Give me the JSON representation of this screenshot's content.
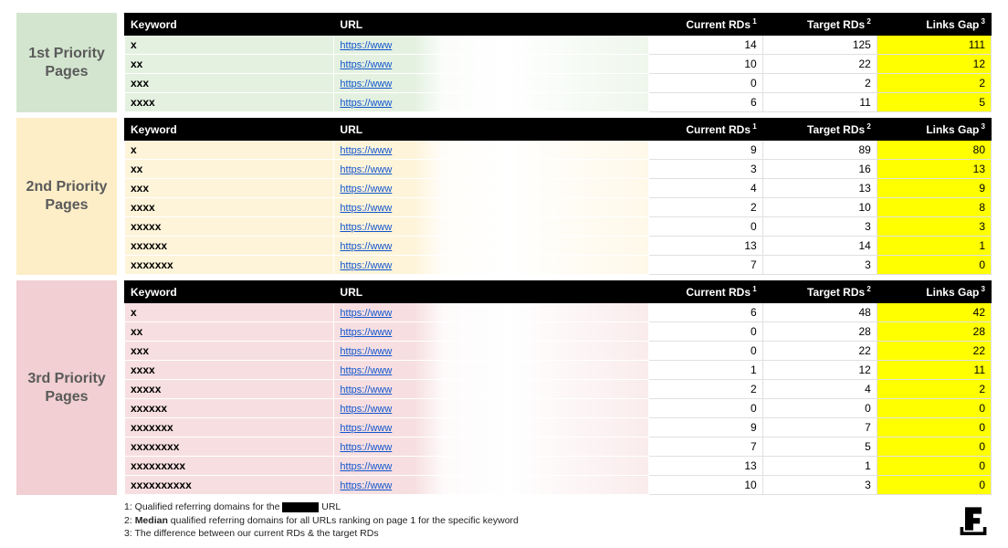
{
  "columns": {
    "keyword": "Keyword",
    "url": "URL",
    "current": "Current RDs",
    "current_sup": "1",
    "target": "Target RDs",
    "target_sup": "2",
    "gap": "Links Gap",
    "gap_sup": "3"
  },
  "sections": [
    {
      "label": "1st Priority Pages",
      "label_bg": "#d3e5cf",
      "row_bg": "#e4f1e0",
      "rows": [
        {
          "kw": "x",
          "url": "https://www",
          "current": 14,
          "target": 125,
          "gap": 111
        },
        {
          "kw": "xx",
          "url": "https://www",
          "current": 10,
          "target": 22,
          "gap": 12
        },
        {
          "kw": "xxx",
          "url": "https://www",
          "current": 0,
          "target": 2,
          "gap": 2
        },
        {
          "kw": "xxxx",
          "url": "https://www",
          "current": 6,
          "target": 11,
          "gap": 5
        }
      ]
    },
    {
      "label": "2nd Priority Pages",
      "label_bg": "#fdeec7",
      "row_bg": "#fef4da",
      "rows": [
        {
          "kw": "x",
          "url": "https://www",
          "current": 9,
          "target": 89,
          "gap": 80
        },
        {
          "kw": "xx",
          "url": "https://www",
          "current": 3,
          "target": 16,
          "gap": 13
        },
        {
          "kw": "xxx",
          "url": "https://www",
          "current": 4,
          "target": 13,
          "gap": 9
        },
        {
          "kw": "xxxx",
          "url": "https://www",
          "current": 2,
          "target": 10,
          "gap": 8
        },
        {
          "kw": "xxxxx",
          "url": "https://www",
          "current": 0,
          "target": 3,
          "gap": 3
        },
        {
          "kw": "xxxxxx",
          "url": "https://www",
          "current": 13,
          "target": 14,
          "gap": 1
        },
        {
          "kw": "xxxxxxx",
          "url": "https://www",
          "current": 7,
          "target": 3,
          "gap": 0
        }
      ]
    },
    {
      "label": "3rd Priority Pages",
      "label_bg": "#f1cfd2",
      "row_bg": "#f7dfe1",
      "rows": [
        {
          "kw": "x",
          "url": "https://www",
          "current": 6,
          "target": 48,
          "gap": 42
        },
        {
          "kw": "xx",
          "url": "https://www",
          "current": 0,
          "target": 28,
          "gap": 28
        },
        {
          "kw": "xxx",
          "url": "https://www",
          "current": 0,
          "target": 22,
          "gap": 22
        },
        {
          "kw": "xxxx",
          "url": "https://www",
          "current": 1,
          "target": 12,
          "gap": 11
        },
        {
          "kw": "xxxxx",
          "url": "https://www",
          "current": 2,
          "target": 4,
          "gap": 2
        },
        {
          "kw": "xxxxxx",
          "url": "https://www",
          "current": 0,
          "target": 0,
          "gap": 0
        },
        {
          "kw": "xxxxxxx",
          "url": "https://www",
          "current": 9,
          "target": 7,
          "gap": 0
        },
        {
          "kw": "xxxxxxxx",
          "url": "https://www",
          "current": 7,
          "target": 5,
          "gap": 0
        },
        {
          "kw": "xxxxxxxxx",
          "url": "https://www",
          "current": 13,
          "target": 1,
          "gap": 0
        },
        {
          "kw": "xxxxxxxxxx",
          "url": "https://www",
          "current": 10,
          "target": 3,
          "gap": 0
        }
      ]
    }
  ],
  "footnotes": {
    "f1_a": "1: Qualified referring domains for the ",
    "f1_b": " URL",
    "f2_a": "2: ",
    "f2_b": "Median",
    "f2_c": " qualified referring domains for all URLs ranking on page 1 for the specific keyword",
    "f3": "3: The difference between our current RDs & the target RDs"
  },
  "colors": {
    "header_bg": "#000000",
    "header_fg": "#ffffff",
    "gap_bg": "#ffff00",
    "link": "#1155cc",
    "row_border": "#ffffff",
    "num_border": "#e0e0e0"
  }
}
